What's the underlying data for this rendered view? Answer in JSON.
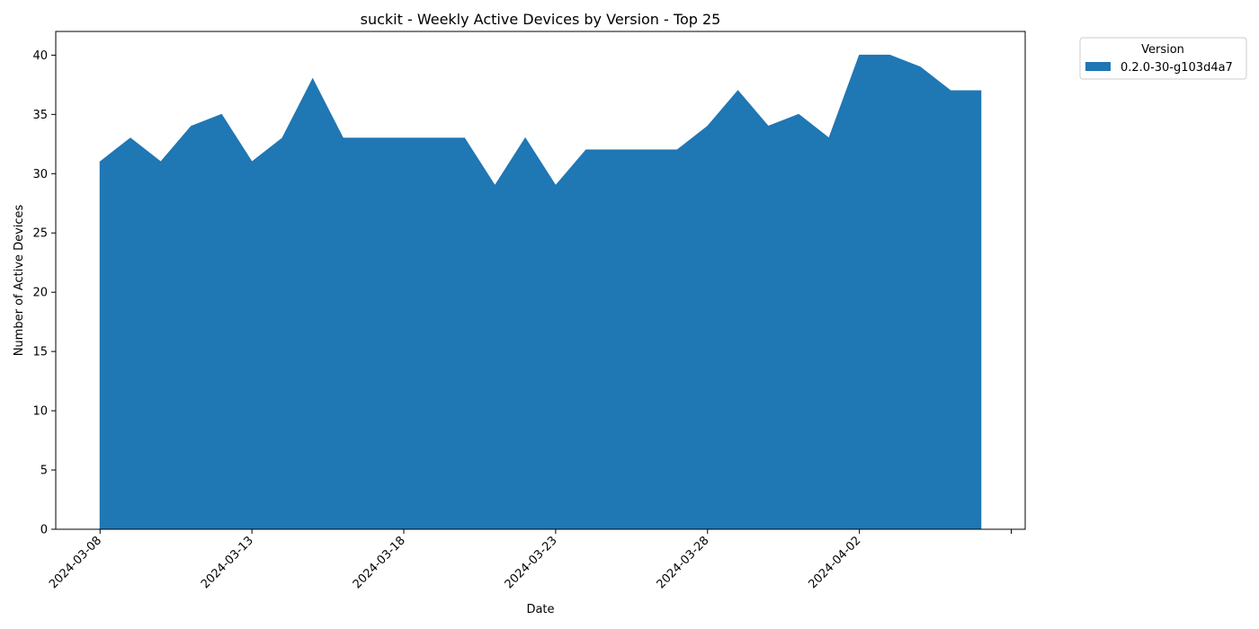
{
  "chart_data": {
    "type": "area",
    "title": "suckit - Weekly Active Devices by Version - Top 25",
    "xlabel": "Date",
    "ylabel": "Number of Active Devices",
    "ylim": [
      0,
      42
    ],
    "xlim": [
      "2024-03-06T13:00",
      "2024-04-07T11:00"
    ],
    "yticks": [
      0,
      5,
      10,
      15,
      20,
      25,
      30,
      35,
      40
    ],
    "xticks": [
      "2024-03-08",
      "2024-03-13",
      "2024-03-18",
      "2024-03-23",
      "2024-03-28",
      "2024-04-02",
      "2024-04-07"
    ],
    "xtick_labels": [
      "2024-03-08",
      "2024-03-13",
      "2024-03-18",
      "2024-03-23",
      "2024-03-28",
      "2024-04-02",
      ""
    ],
    "grid": false,
    "legend": {
      "title": "Version",
      "placement": "outside-top-right"
    },
    "x": [
      "2024-03-08",
      "2024-03-09",
      "2024-03-10",
      "2024-03-11",
      "2024-03-12",
      "2024-03-13",
      "2024-03-14",
      "2024-03-15",
      "2024-03-16",
      "2024-03-17",
      "2024-03-18",
      "2024-03-19",
      "2024-03-20",
      "2024-03-21",
      "2024-03-22",
      "2024-03-23",
      "2024-03-24",
      "2024-03-25",
      "2024-03-26",
      "2024-03-27",
      "2024-03-28",
      "2024-03-29",
      "2024-03-30",
      "2024-03-31",
      "2024-04-01",
      "2024-04-02",
      "2024-04-03",
      "2024-04-04",
      "2024-04-05",
      "2024-04-06"
    ],
    "series": [
      {
        "name": "0.2.0-30-g103d4a7",
        "color": "#1f77b4",
        "values": [
          31,
          33,
          31,
          34,
          35,
          31,
          33,
          38,
          33,
          33,
          33,
          33,
          33,
          29,
          33,
          29,
          32,
          32,
          32,
          32,
          34,
          37,
          34,
          35,
          33,
          40,
          40,
          39,
          37,
          37
        ]
      }
    ]
  }
}
